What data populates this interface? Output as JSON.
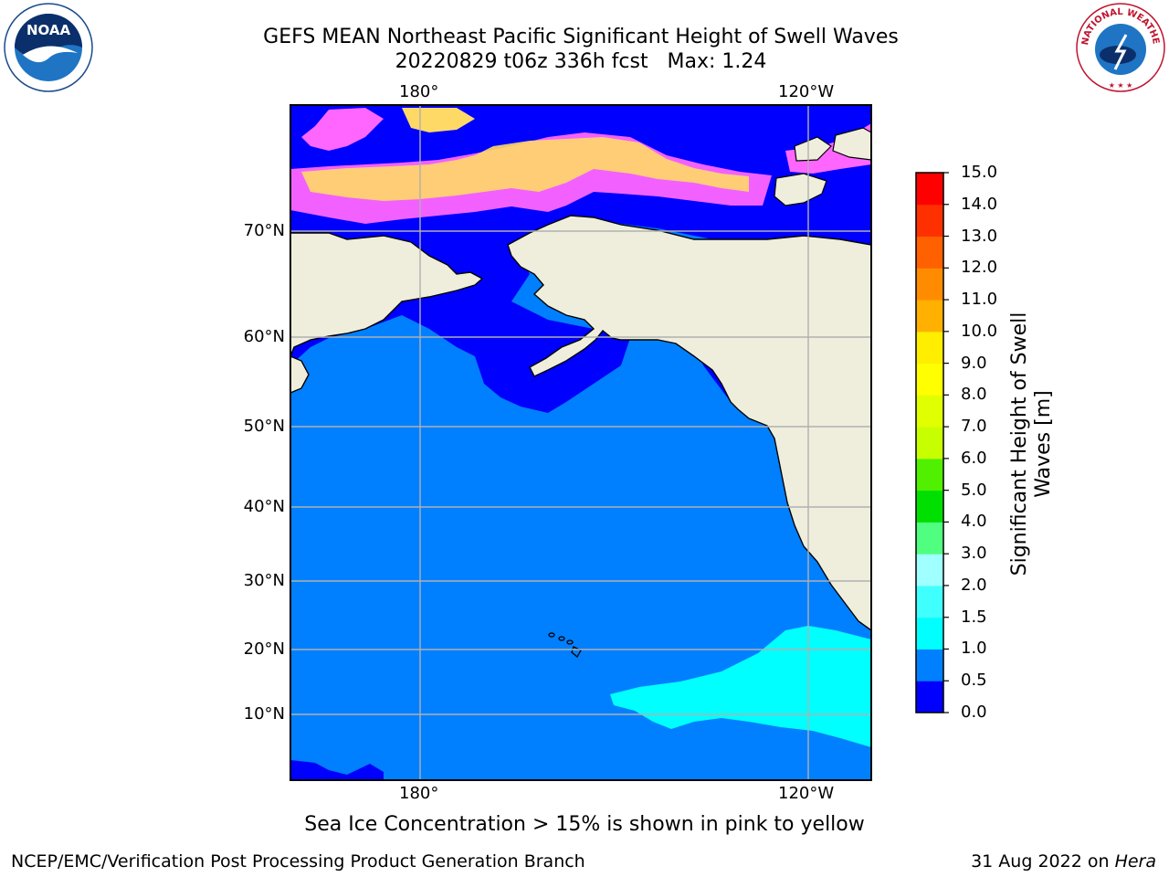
{
  "title": {
    "line1": "GEFS MEAN Northeast Pacific Significant Height of Swell Waves",
    "line2": "20220829 t06z 336h fcst   Max: 1.24"
  },
  "map": {
    "top_lon_ticks": [
      "180°",
      "120°W"
    ],
    "bottom_lon_ticks": [
      "180°",
      "120°W"
    ],
    "lat_ticks": [
      "70°N",
      "60°N",
      "50°N",
      "40°N",
      "30°N",
      "20°N",
      "10°N"
    ]
  },
  "colorbar": {
    "label_line1": "Significant Height of Swell",
    "label_line2": "Waves [m]",
    "levels": [
      "0.0",
      "0.5",
      "1.0",
      "1.5",
      "2.0",
      "3.0",
      "4.0",
      "5.0",
      "6.0",
      "7.0",
      "8.0",
      "9.0",
      "10.0",
      "11.0",
      "12.0",
      "13.0",
      "14.0",
      "15.0"
    ],
    "colors": [
      "#0000ff",
      "#0080ff",
      "#00ffff",
      "#40ffff",
      "#a0ffff",
      "#50ff80",
      "#00e000",
      "#50f000",
      "#c8ff00",
      "#e0ff00",
      "#ffff00",
      "#ffee00",
      "#ffb000",
      "#ff8c00",
      "#ff6000",
      "#ff3000",
      "#ff0000"
    ]
  },
  "note": "Sea Ice Concentration > 15% is shown in pink to yellow",
  "footer": {
    "left": "NCEP/EMC/Verification Post Processing Product Generation Branch",
    "right_date": "31 Aug 2022 on ",
    "right_machine": "Hera"
  },
  "logos": {
    "noaa_text": "NOAA",
    "nws_text": "NATIONAL WEATHER SERVICE"
  }
}
